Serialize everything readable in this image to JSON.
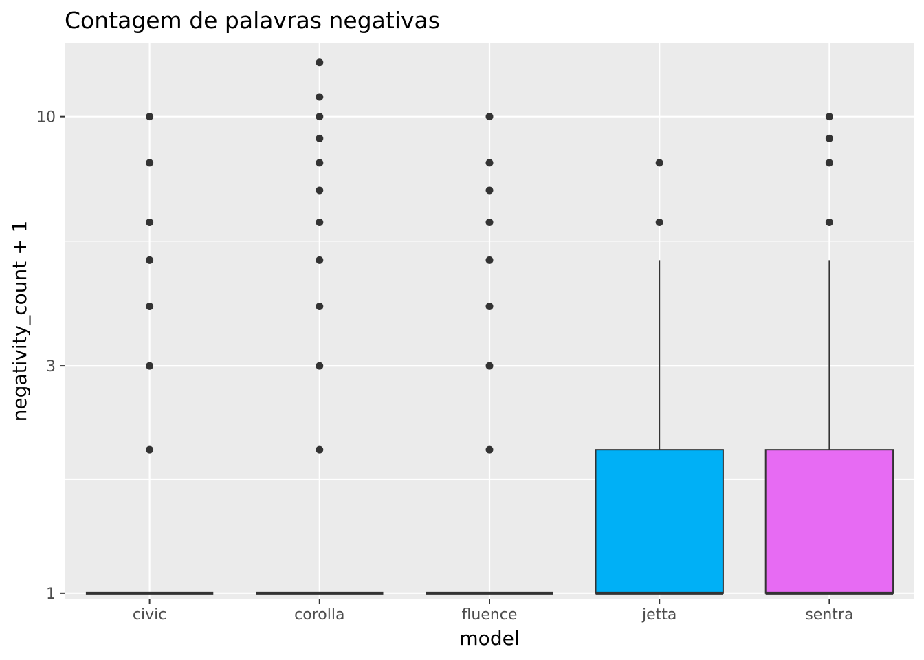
{
  "chart_data": {
    "type": "box",
    "title": "Contagem de palavras negativas",
    "xlabel": "model",
    "ylabel": "negativity_count + 1",
    "y_scale": "log10",
    "ylim": [
      0.97,
      14.3
    ],
    "y_ticks": [
      1,
      3,
      10
    ],
    "y_tick_labels": [
      "1",
      "3",
      "10"
    ],
    "y_minor_ticks": [
      1.732,
      5.477
    ],
    "grid": true,
    "panel_color": "#ebebeb",
    "grid_color": "#ffffff",
    "categories": [
      "civic",
      "corolla",
      "fluence",
      "jetta",
      "sentra"
    ],
    "boxes": [
      {
        "category": "civic",
        "fill": "#f8766d",
        "lower_whisker": 1,
        "q1": 1,
        "median": 1,
        "q3": 1,
        "upper_whisker": 1,
        "outliers": [
          2,
          3,
          4,
          5,
          6,
          8,
          10
        ]
      },
      {
        "category": "corolla",
        "fill": "#a3a500",
        "lower_whisker": 1,
        "q1": 1,
        "median": 1,
        "q3": 1,
        "upper_whisker": 1,
        "outliers": [
          2,
          3,
          4,
          5,
          6,
          7,
          8,
          9,
          10,
          11,
          13
        ]
      },
      {
        "category": "fluence",
        "fill": "#00bf7d",
        "lower_whisker": 1,
        "q1": 1,
        "median": 1,
        "q3": 1,
        "upper_whisker": 1,
        "outliers": [
          2,
          3,
          4,
          5,
          6,
          7,
          8,
          10
        ]
      },
      {
        "category": "jetta",
        "fill": "#00b0f6",
        "lower_whisker": 1,
        "q1": 1,
        "median": 1,
        "q3": 2,
        "upper_whisker": 5,
        "outliers": [
          6,
          8
        ]
      },
      {
        "category": "sentra",
        "fill": "#e76bf3",
        "lower_whisker": 1,
        "q1": 1,
        "median": 1,
        "q3": 2,
        "upper_whisker": 5,
        "outliers": [
          6,
          8,
          9,
          10
        ]
      }
    ]
  }
}
